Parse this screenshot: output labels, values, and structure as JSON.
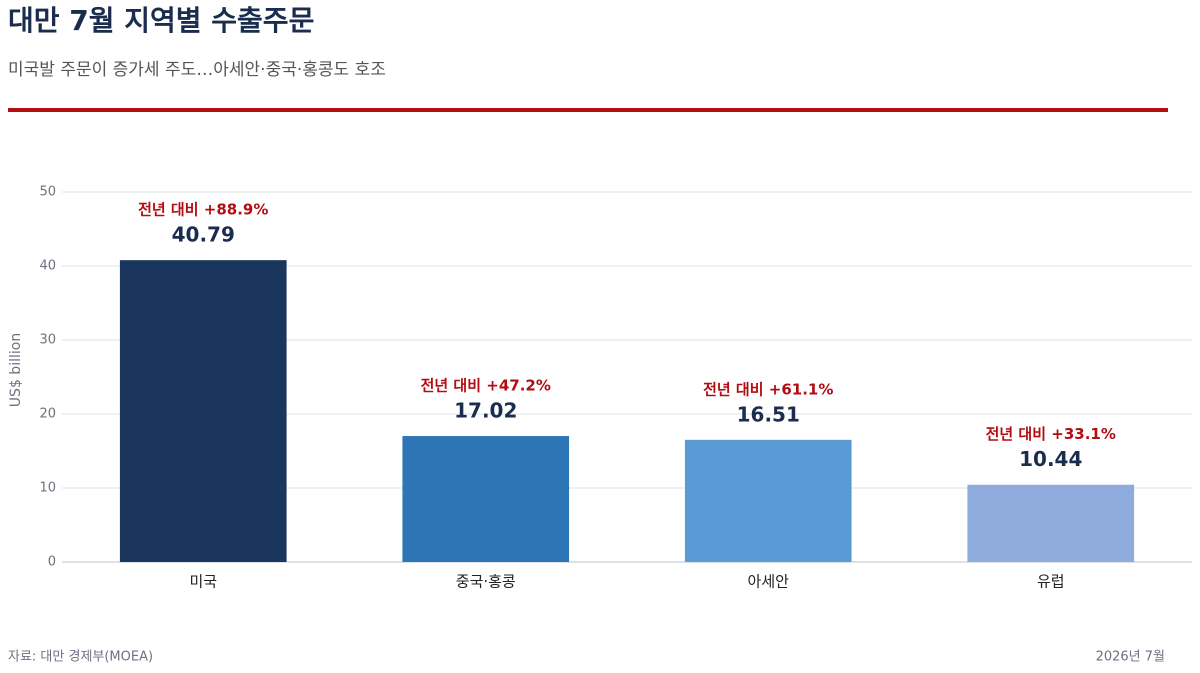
{
  "chart_data": {
    "type": "bar",
    "title": "대만 7월 지역별 수출주문",
    "subtitle": "미국발 주문이 증가세 주도…아세안·중국·홍콩도 호조",
    "ylabel": "US$ billion",
    "categories": [
      "미국",
      "중국·홍콩",
      "아세안",
      "유럽"
    ],
    "values": [
      40.79,
      17.02,
      16.51,
      10.44
    ],
    "colors": [
      "#1b365d",
      "#2e75b6",
      "#5b9bd5",
      "#8faadc"
    ],
    "annotations": [
      "전년 대비 +88.9%",
      "전년 대비 +47.2%",
      "전년 대비 +61.1%",
      "전년 대비 +33.1%"
    ],
    "ylim": [
      0,
      50
    ],
    "yticks": [
      0,
      10,
      20,
      30,
      40,
      50
    ],
    "grid": true,
    "source": "자료: 대만 경제부(MOEA)",
    "date": "2026년 7월"
  }
}
